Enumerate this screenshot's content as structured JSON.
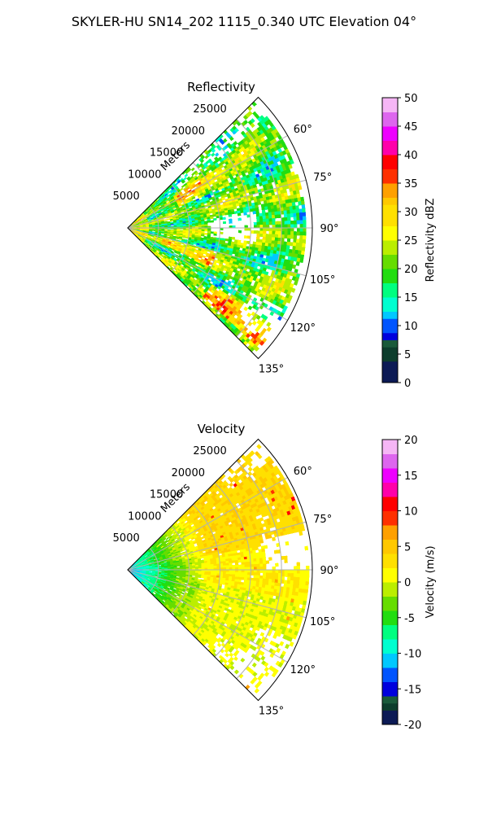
{
  "figure": {
    "title": "SKYLER-HU  SN14_202  1115_0.340 UTC Elevation 04°"
  },
  "chart_data": [
    {
      "type": "heatmap",
      "subtype": "polar-sector",
      "title": "Reflectivity",
      "radial_label": "Meters",
      "radial_ticks": [
        5000,
        10000,
        15000,
        20000,
        25000
      ],
      "r_max_m": 30000,
      "azimuth_range_deg": [
        45,
        135
      ],
      "angle_ticks": [
        "60°",
        "75°",
        "90°",
        "105°",
        "120°",
        "135°"
      ],
      "grid": true,
      "colorbar": {
        "label": "Reflectivity dBZ",
        "range": [
          0,
          50
        ],
        "ticks": [
          0,
          5,
          10,
          15,
          20,
          25,
          30,
          35,
          40,
          45,
          50
        ],
        "colormap": [
          [
            0,
            "#0c1a55"
          ],
          [
            4,
            "#0d3d2c"
          ],
          [
            6,
            "#1a5a3a"
          ],
          [
            7,
            "#0000dd"
          ],
          [
            9,
            "#0055ff"
          ],
          [
            11,
            "#00c8ff"
          ],
          [
            13,
            "#00ffd0"
          ],
          [
            15,
            "#00ff80"
          ],
          [
            17,
            "#22dd11"
          ],
          [
            20,
            "#66dd00"
          ],
          [
            22,
            "#bbee00"
          ],
          [
            25,
            "#ffff00"
          ],
          [
            28,
            "#ffe000"
          ],
          [
            31,
            "#ffc800"
          ],
          [
            33,
            "#ffa000"
          ],
          [
            35,
            "#ff3000"
          ],
          [
            38,
            "#ff0000"
          ],
          [
            40,
            "#ff00aa"
          ],
          [
            42,
            "#ee00ff"
          ],
          [
            45,
            "#dd66ee"
          ],
          [
            48,
            "#f5b6f5"
          ],
          [
            50,
            "#fff0ff"
          ]
        ]
      },
      "field_description": "Mostly 18–26 dBZ with embedded bands of 28–33 dBZ and isolated cores to ~38 dBZ; gaps near 90° azimuth at mid range."
    },
    {
      "type": "heatmap",
      "subtype": "polar-sector",
      "title": "Velocity",
      "radial_label": "Meters",
      "radial_ticks": [
        5000,
        10000,
        15000,
        20000,
        25000
      ],
      "r_max_m": 30000,
      "azimuth_range_deg": [
        45,
        135
      ],
      "angle_ticks": [
        "60°",
        "75°",
        "90°",
        "105°",
        "120°",
        "135°"
      ],
      "grid": true,
      "colorbar": {
        "label": "Velocity (m/s)",
        "range": [
          -20,
          20
        ],
        "ticks": [
          -20,
          -15,
          -10,
          -5,
          0,
          5,
          10,
          15,
          20
        ],
        "colormap": [
          [
            -20,
            "#0c1a55"
          ],
          [
            -18,
            "#0d3d2c"
          ],
          [
            -17,
            "#1a5a3a"
          ],
          [
            -16,
            "#0000dd"
          ],
          [
            -14,
            "#0055ff"
          ],
          [
            -12,
            "#00c8ff"
          ],
          [
            -10,
            "#00ffd0"
          ],
          [
            -8,
            "#00ff80"
          ],
          [
            -6,
            "#22dd11"
          ],
          [
            -4,
            "#66dd00"
          ],
          [
            -2,
            "#bbee00"
          ],
          [
            0,
            "#ffff00"
          ],
          [
            2,
            "#ffe000"
          ],
          [
            4,
            "#ffc800"
          ],
          [
            6,
            "#ffa000"
          ],
          [
            8,
            "#ff3000"
          ],
          [
            10,
            "#ff0000"
          ],
          [
            12,
            "#ff00aa"
          ],
          [
            14,
            "#ee00ff"
          ],
          [
            16,
            "#dd66ee"
          ],
          [
            18,
            "#f5b6f5"
          ],
          [
            20,
            "#fff0ff"
          ]
        ]
      },
      "field_description": "About -12 m/s near the radar increasing to ~0 to +2 m/s beyond 12 km; slightly higher toward 60°."
    }
  ]
}
